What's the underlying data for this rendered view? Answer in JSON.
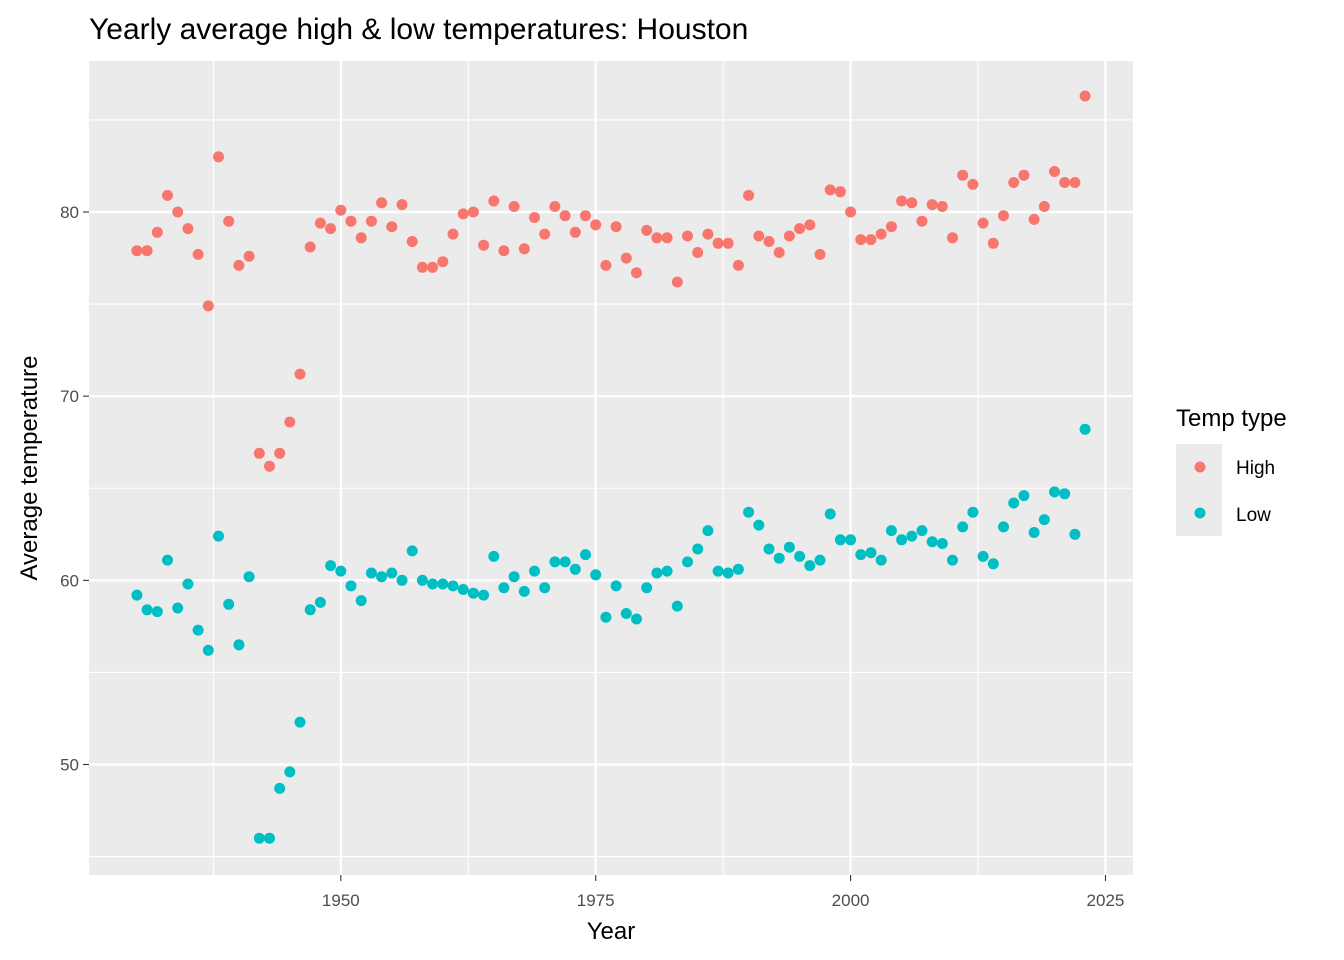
{
  "chart_data": {
    "type": "scatter",
    "title": "Yearly average high & low temperatures: Houston",
    "xlabel": "Year",
    "ylabel": "Average temperature",
    "xlim": [
      1925.3,
      2027.7
    ],
    "ylim": [
      44.0,
      88.2
    ],
    "x_ticks": [
      1950,
      1975,
      2000,
      2025
    ],
    "y_ticks": [
      50,
      60,
      70,
      80
    ],
    "grid": true,
    "legend": {
      "title": "Temp type",
      "position": "right"
    },
    "series": [
      {
        "name": "High",
        "color": "#F8766D",
        "points": [
          [
            1930,
            77.9
          ],
          [
            1931,
            77.9
          ],
          [
            1932,
            78.9
          ],
          [
            1933,
            80.9
          ],
          [
            1934,
            80.0
          ],
          [
            1935,
            79.1
          ],
          [
            1936,
            77.7
          ],
          [
            1937,
            74.9
          ],
          [
            1938,
            83.0
          ],
          [
            1939,
            79.5
          ],
          [
            1940,
            77.1
          ],
          [
            1941,
            77.6
          ],
          [
            1942,
            66.9
          ],
          [
            1943,
            66.2
          ],
          [
            1944,
            66.9
          ],
          [
            1945,
            68.6
          ],
          [
            1946,
            71.2
          ],
          [
            1947,
            78.1
          ],
          [
            1948,
            79.4
          ],
          [
            1949,
            79.1
          ],
          [
            1950,
            80.1
          ],
          [
            1951,
            79.5
          ],
          [
            1952,
            78.6
          ],
          [
            1953,
            79.5
          ],
          [
            1954,
            80.5
          ],
          [
            1955,
            79.2
          ],
          [
            1956,
            80.4
          ],
          [
            1957,
            78.4
          ],
          [
            1958,
            77.0
          ],
          [
            1959,
            77.0
          ],
          [
            1960,
            77.3
          ],
          [
            1961,
            78.8
          ],
          [
            1962,
            79.9
          ],
          [
            1963,
            80.0
          ],
          [
            1964,
            78.2
          ],
          [
            1965,
            80.6
          ],
          [
            1966,
            77.9
          ],
          [
            1967,
            80.3
          ],
          [
            1968,
            78.0
          ],
          [
            1969,
            79.7
          ],
          [
            1970,
            78.8
          ],
          [
            1971,
            80.3
          ],
          [
            1972,
            79.8
          ],
          [
            1973,
            78.9
          ],
          [
            1974,
            79.8
          ],
          [
            1975,
            79.3
          ],
          [
            1976,
            77.1
          ],
          [
            1977,
            79.2
          ],
          [
            1978,
            77.5
          ],
          [
            1979,
            76.7
          ],
          [
            1980,
            79.0
          ],
          [
            1981,
            78.6
          ],
          [
            1982,
            78.6
          ],
          [
            1983,
            76.2
          ],
          [
            1984,
            78.7
          ],
          [
            1985,
            77.8
          ],
          [
            1986,
            78.8
          ],
          [
            1987,
            78.3
          ],
          [
            1988,
            78.3
          ],
          [
            1989,
            77.1
          ],
          [
            1990,
            80.9
          ],
          [
            1991,
            78.7
          ],
          [
            1992,
            78.4
          ],
          [
            1993,
            77.8
          ],
          [
            1994,
            78.7
          ],
          [
            1995,
            79.1
          ],
          [
            1996,
            79.3
          ],
          [
            1997,
            77.7
          ],
          [
            1998,
            81.2
          ],
          [
            1999,
            81.1
          ],
          [
            2000,
            80.0
          ],
          [
            2001,
            78.5
          ],
          [
            2002,
            78.5
          ],
          [
            2003,
            78.8
          ],
          [
            2004,
            79.2
          ],
          [
            2005,
            80.6
          ],
          [
            2006,
            80.5
          ],
          [
            2007,
            79.5
          ],
          [
            2008,
            80.4
          ],
          [
            2009,
            80.3
          ],
          [
            2010,
            78.6
          ],
          [
            2011,
            82.0
          ],
          [
            2012,
            81.5
          ],
          [
            2013,
            79.4
          ],
          [
            2014,
            78.3
          ],
          [
            2015,
            79.8
          ],
          [
            2016,
            81.6
          ],
          [
            2017,
            82.0
          ],
          [
            2018,
            79.6
          ],
          [
            2019,
            80.3
          ],
          [
            2020,
            82.2
          ],
          [
            2021,
            81.6
          ],
          [
            2022,
            81.6
          ],
          [
            2023,
            86.3
          ]
        ]
      },
      {
        "name": "Low",
        "color": "#00BFC4",
        "points": [
          [
            1930,
            59.2
          ],
          [
            1931,
            58.4
          ],
          [
            1932,
            58.3
          ],
          [
            1933,
            61.1
          ],
          [
            1934,
            58.5
          ],
          [
            1935,
            59.8
          ],
          [
            1936,
            57.3
          ],
          [
            1937,
            56.2
          ],
          [
            1938,
            62.4
          ],
          [
            1939,
            58.7
          ],
          [
            1940,
            56.5
          ],
          [
            1941,
            60.2
          ],
          [
            1942,
            46.0
          ],
          [
            1943,
            46.0
          ],
          [
            1944,
            48.7
          ],
          [
            1945,
            49.6
          ],
          [
            1946,
            52.3
          ],
          [
            1947,
            58.4
          ],
          [
            1948,
            58.8
          ],
          [
            1949,
            60.8
          ],
          [
            1950,
            60.5
          ],
          [
            1951,
            59.7
          ],
          [
            1952,
            58.9
          ],
          [
            1953,
            60.4
          ],
          [
            1954,
            60.2
          ],
          [
            1955,
            60.4
          ],
          [
            1956,
            60.0
          ],
          [
            1957,
            61.6
          ],
          [
            1958,
            60.0
          ],
          [
            1959,
            59.8
          ],
          [
            1960,
            59.8
          ],
          [
            1961,
            59.7
          ],
          [
            1962,
            59.5
          ],
          [
            1963,
            59.3
          ],
          [
            1964,
            59.2
          ],
          [
            1965,
            61.3
          ],
          [
            1966,
            59.6
          ],
          [
            1967,
            60.2
          ],
          [
            1968,
            59.4
          ],
          [
            1969,
            60.5
          ],
          [
            1970,
            59.6
          ],
          [
            1971,
            61.0
          ],
          [
            1972,
            61.0
          ],
          [
            1973,
            60.6
          ],
          [
            1974,
            61.4
          ],
          [
            1975,
            60.3
          ],
          [
            1976,
            58.0
          ],
          [
            1977,
            59.7
          ],
          [
            1978,
            58.2
          ],
          [
            1979,
            57.9
          ],
          [
            1980,
            59.6
          ],
          [
            1981,
            60.4
          ],
          [
            1982,
            60.5
          ],
          [
            1983,
            58.6
          ],
          [
            1984,
            61.0
          ],
          [
            1985,
            61.7
          ],
          [
            1986,
            62.7
          ],
          [
            1987,
            60.5
          ],
          [
            1988,
            60.4
          ],
          [
            1989,
            60.6
          ],
          [
            1990,
            63.7
          ],
          [
            1991,
            63.0
          ],
          [
            1992,
            61.7
          ],
          [
            1993,
            61.2
          ],
          [
            1994,
            61.8
          ],
          [
            1995,
            61.3
          ],
          [
            1996,
            60.8
          ],
          [
            1997,
            61.1
          ],
          [
            1998,
            63.6
          ],
          [
            1999,
            62.2
          ],
          [
            2000,
            62.2
          ],
          [
            2001,
            61.4
          ],
          [
            2002,
            61.5
          ],
          [
            2003,
            61.1
          ],
          [
            2004,
            62.7
          ],
          [
            2005,
            62.2
          ],
          [
            2006,
            62.4
          ],
          [
            2007,
            62.7
          ],
          [
            2008,
            62.1
          ],
          [
            2009,
            62.0
          ],
          [
            2010,
            61.1
          ],
          [
            2011,
            62.9
          ],
          [
            2012,
            63.7
          ],
          [
            2013,
            61.3
          ],
          [
            2014,
            60.9
          ],
          [
            2015,
            62.9
          ],
          [
            2016,
            64.2
          ],
          [
            2017,
            64.6
          ],
          [
            2018,
            62.6
          ],
          [
            2019,
            63.3
          ],
          [
            2020,
            64.8
          ],
          [
            2021,
            64.7
          ],
          [
            2022,
            62.5
          ],
          [
            2023,
            68.2
          ]
        ]
      }
    ]
  }
}
